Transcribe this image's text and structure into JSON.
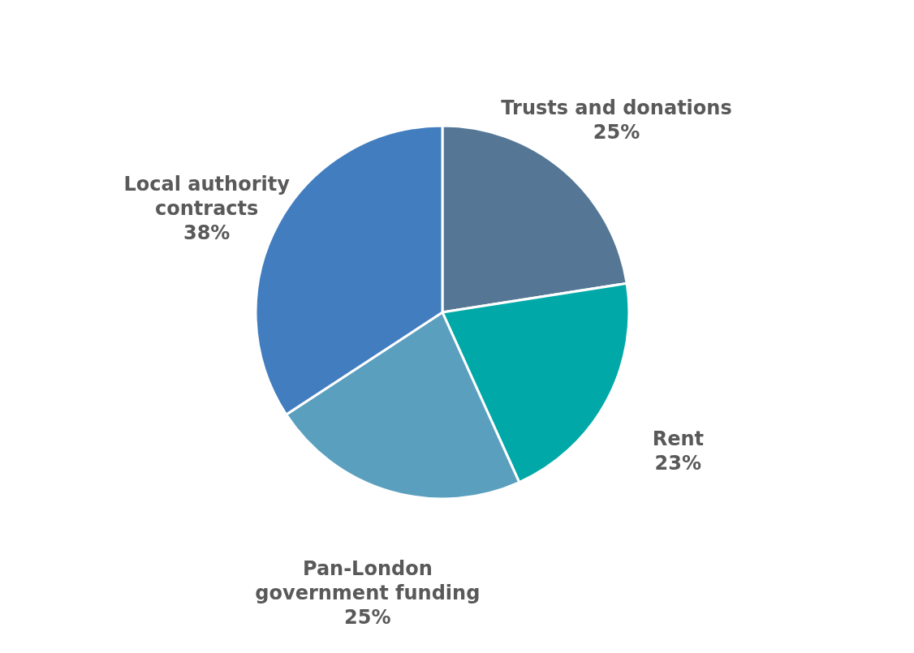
{
  "chart_data": {
    "type": "pie",
    "categories": [
      "Trusts and donations",
      "Rent",
      "Pan-London government funding",
      "Local authority contracts"
    ],
    "values": [
      25,
      23,
      25,
      38
    ],
    "value_labels": [
      "25%",
      "23%",
      "25%",
      "38%"
    ],
    "colors": [
      "#557795",
      "#00a9a8",
      "#5b9fbf",
      "#417dbf"
    ],
    "legend": false
  }
}
